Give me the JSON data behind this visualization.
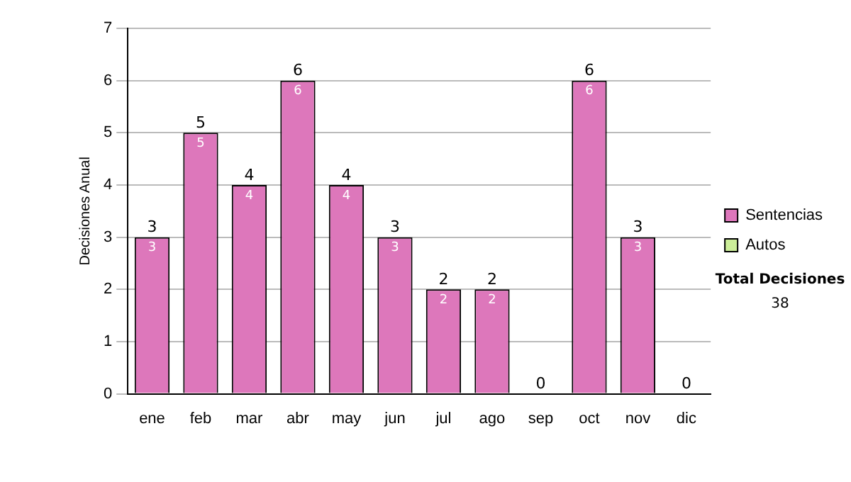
{
  "chart_data": {
    "type": "bar",
    "ylabel": "Decisiones Anual",
    "categories": [
      "ene",
      "feb",
      "mar",
      "abr",
      "may",
      "jun",
      "jul",
      "ago",
      "sep",
      "oct",
      "nov",
      "dic"
    ],
    "series": [
      {
        "name": "Sentencias",
        "color": "#dd77bb",
        "values": [
          3,
          5,
          4,
          6,
          4,
          3,
          2,
          2,
          0,
          6,
          3,
          0
        ],
        "value_labels": [
          "3",
          "5",
          "4",
          "6",
          "4",
          "3",
          "2",
          "2",
          null,
          "6",
          "3",
          null
        ]
      },
      {
        "name": "Autos",
        "color": "#ccee99",
        "values": [
          0,
          0,
          0,
          0,
          0,
          0,
          0,
          0,
          0,
          0,
          0,
          0
        ]
      }
    ],
    "stacked": true,
    "totals": [
      "3",
      "5",
      "4",
      "6",
      "4",
      "3",
      "2",
      "2",
      "0",
      "6",
      "3",
      "0"
    ],
    "ylim": [
      0,
      7
    ],
    "yticks": [
      0,
      1,
      2,
      3,
      4,
      5,
      6,
      7
    ],
    "grid": "y",
    "legend": "right",
    "annotations": [
      "Total Decisiones",
      "38"
    ]
  }
}
